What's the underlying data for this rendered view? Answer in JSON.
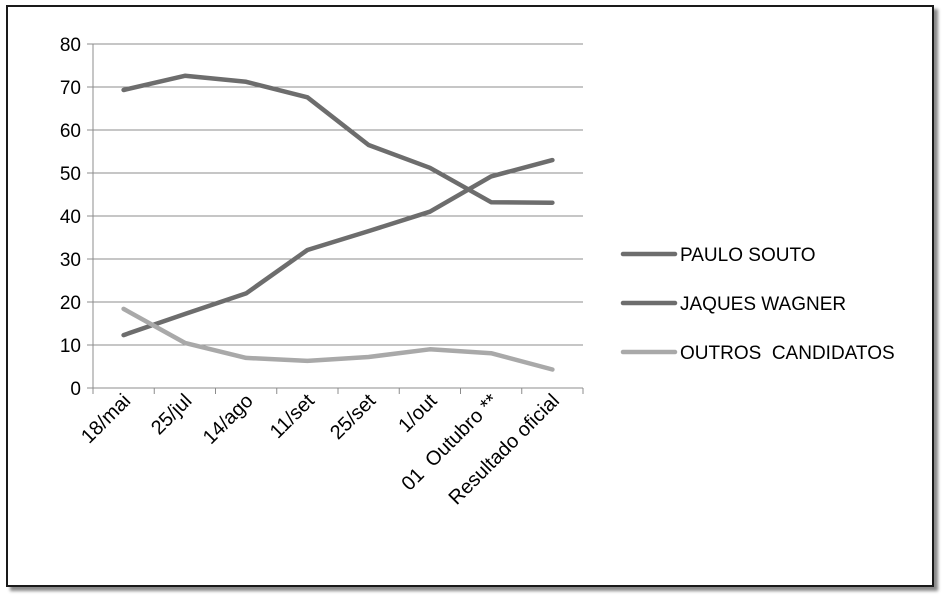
{
  "chart_data": {
    "type": "line",
    "categories": [
      "18/mai",
      "25/jul",
      "14/ago",
      "11/set",
      "25/set",
      "1/out",
      "01  Outubro **",
      "Resultado oficial"
    ],
    "series": [
      {
        "name": "PAULO SOUTO",
        "values": [
          69.3,
          72.6,
          71.2,
          67.6,
          56.5,
          51.2,
          43.2,
          43.1
        ],
        "color": "#6d6d6d"
      },
      {
        "name": "JAQUES WAGNER",
        "values": [
          12.3,
          17.2,
          22.0,
          32.1,
          36.5,
          41.0,
          49.2,
          53.0
        ],
        "color": "#6d6d6d"
      },
      {
        "name": "OUTROS  CANDIDATOS",
        "values": [
          18.4,
          10.5,
          7.0,
          6.3,
          7.2,
          9.0,
          8.1,
          4.3
        ],
        "color": "#a9a9a9"
      }
    ],
    "ylim": [
      0,
      80
    ],
    "yticks": [
      0,
      10,
      20,
      30,
      40,
      50,
      60,
      70,
      80
    ],
    "grid": true,
    "legend": "right",
    "title": "",
    "xlabel": "",
    "ylabel": ""
  }
}
